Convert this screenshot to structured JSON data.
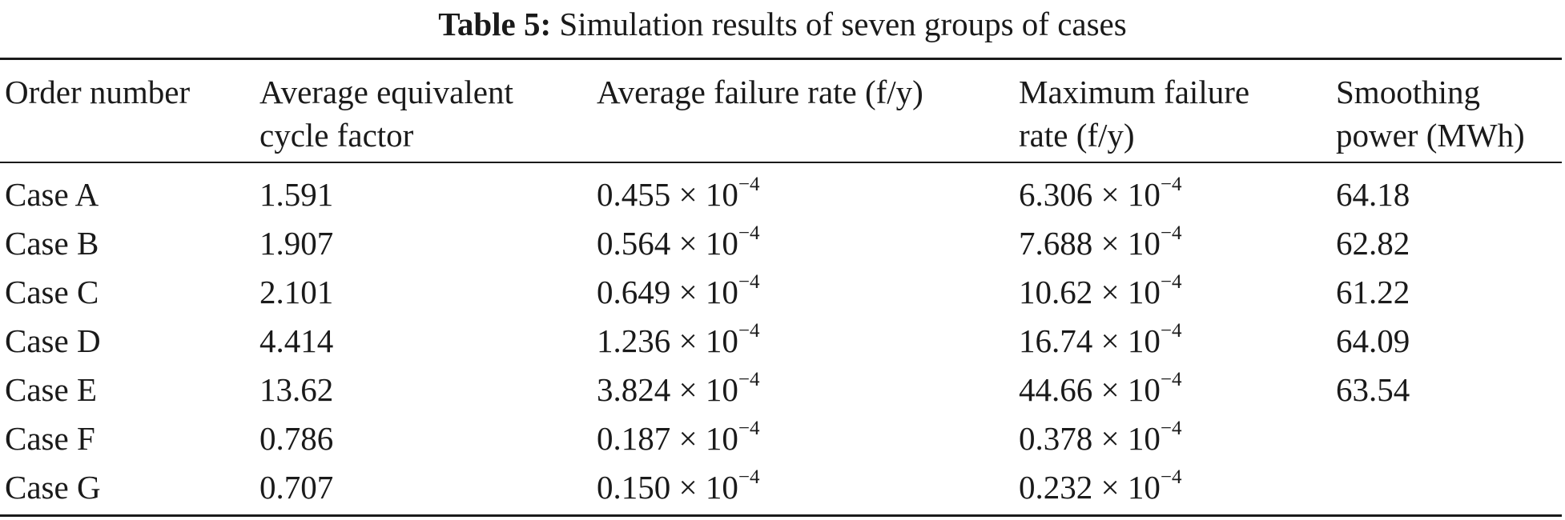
{
  "caption": {
    "label": "Table 5:",
    "text": "Simulation results of seven groups of cases"
  },
  "table": {
    "headers": [
      [
        "Order number"
      ],
      [
        "Average equivalent",
        "cycle factor"
      ],
      [
        "Average failure rate (f/y)"
      ],
      [
        "Maximum failure",
        "rate (f/y)"
      ],
      [
        "Smoothing",
        "power (MWh)"
      ]
    ],
    "rows": [
      {
        "order": "Case A",
        "cycle_factor": "1.591",
        "avg_rate": "0.455",
        "max_rate": "6.306",
        "power": "64.18"
      },
      {
        "order": "Case B",
        "cycle_factor": "1.907",
        "avg_rate": "0.564",
        "max_rate": "7.688",
        "power": "62.82"
      },
      {
        "order": "Case C",
        "cycle_factor": "2.101",
        "avg_rate": "0.649",
        "max_rate": "10.62",
        "power": "61.22"
      },
      {
        "order": "Case D",
        "cycle_factor": "4.414",
        "avg_rate": "1.236",
        "max_rate": "16.74",
        "power": "64.09"
      },
      {
        "order": "Case E",
        "cycle_factor": "13.62",
        "avg_rate": "3.824",
        "max_rate": "44.66",
        "power": "63.54"
      },
      {
        "order": "Case F",
        "cycle_factor": "0.786",
        "avg_rate": "0.187",
        "max_rate": "0.378",
        "power": ""
      },
      {
        "order": "Case G",
        "cycle_factor": "0.707",
        "avg_rate": "0.150",
        "max_rate": "0.232",
        "power": ""
      }
    ],
    "sci_multiplier": "× 10",
    "sci_exponent": "−4"
  }
}
